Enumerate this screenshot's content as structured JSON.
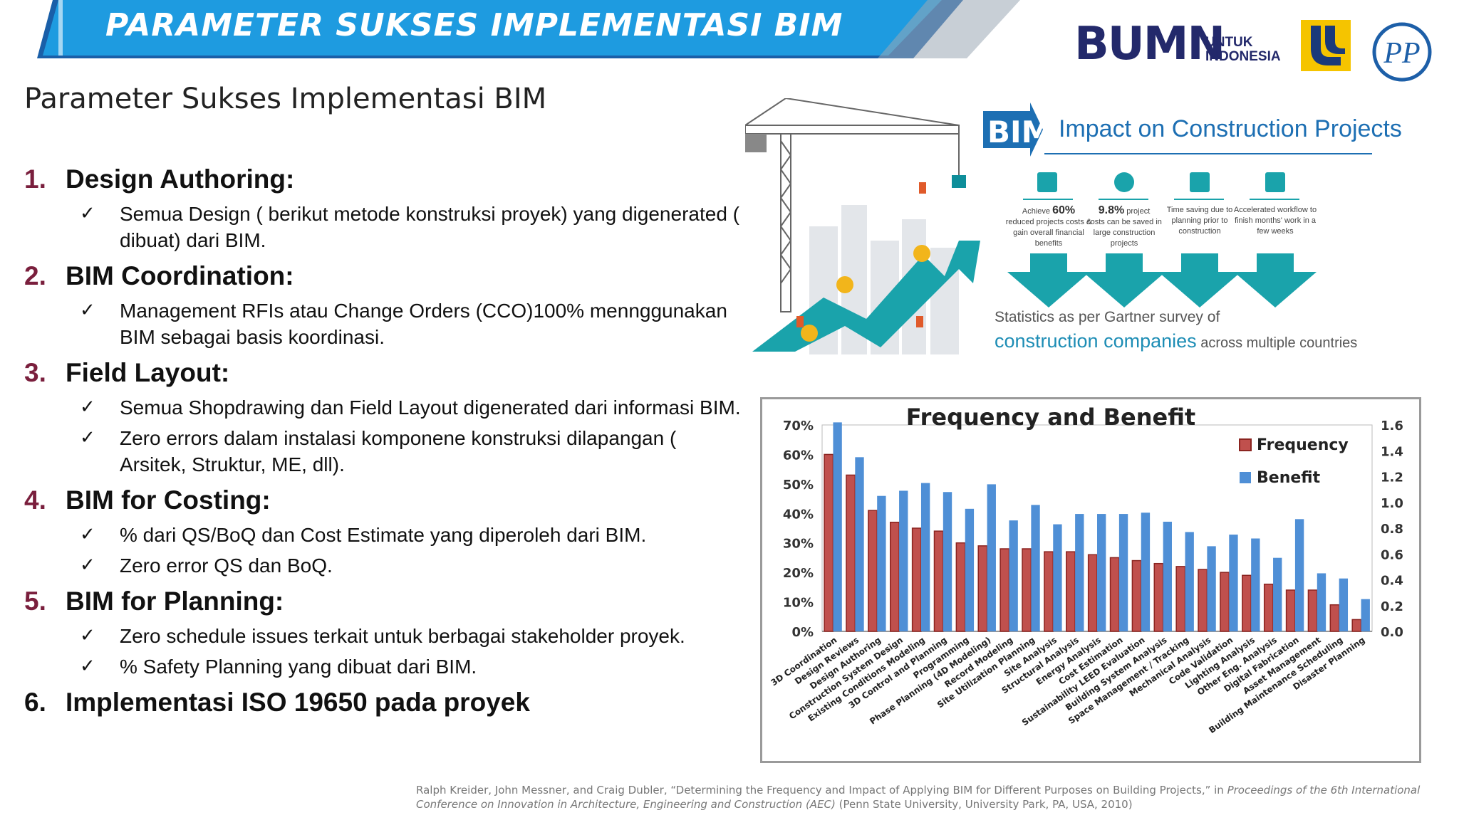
{
  "header": {
    "banner_title": "PARAMETER SUKSES IMPLEMENTASI BIM",
    "logos": {
      "bumn": "BUMN",
      "bumn_line1": "UNTUK",
      "bumn_line2": "INDONESIA",
      "pp": "PP"
    },
    "colors": {
      "banner": "#1e9be0",
      "banner_dark": "#1a5fa8",
      "navy": "#23296b"
    }
  },
  "page_title": "Parameter Sukses Implementasi BIM",
  "parameters": [
    {
      "num": "1.",
      "title": "Design Authoring:",
      "bullets": [
        "Semua Design ( berikut metode konstruksi proyek)  yang digenerated ( dibuat) dari BIM."
      ]
    },
    {
      "num": "2.",
      "title": "BIM Coordination:",
      "bullets": [
        "Management  RFIs atau Change Orders (CCO)100% mennggunakan BIM sebagai basis koordinasi."
      ]
    },
    {
      "num": "3.",
      "title": "Field Layout:",
      "bullets": [
        "Semua Shopdrawing dan Field Layout  digenerated dari informasi BIM.",
        "Zero errors dalam instalasi komponene konstruksi dilapangan ( Arsitek, Struktur, ME, dll)."
      ]
    },
    {
      "num": "4.",
      "title": "BIM for Costing:",
      "bullets": [
        "% dari QS/BoQ dan Cost Estimate yang diperoleh dari BIM.",
        "Zero error QS dan BoQ."
      ]
    },
    {
      "num": "5.",
      "title": "BIM for Planning:",
      "bullets": [
        "Zero schedule issues terkait untuk berbagai stakeholder proyek.",
        "% Safety Planning yang dibuat dari BIM."
      ]
    },
    {
      "num": "6.",
      "title": "Implementasi ISO 19650 pada proyek",
      "bullets": []
    }
  ],
  "infographic": {
    "tag": "BIM",
    "title": "Impact on Construction Projects",
    "stats": [
      {
        "highlight": "60%",
        "pre": "Achieve ",
        "text": "reduced projects costs & gain overall financial benefits"
      },
      {
        "highlight": "9.8%",
        "pre": "",
        "post": " project",
        "text": "costs can be saved in large construction projects"
      },
      {
        "highlight": "",
        "pre": "",
        "text": "Time saving due to planning prior to construction"
      },
      {
        "highlight": "",
        "pre": "",
        "text": "Accelerated workflow to finish months' work in a few weeks"
      }
    ],
    "note_line1": "Statistics as per Gartner survey of",
    "note_highlight": "construction companies",
    "note_tail": " across multiple countries"
  },
  "chart_data": {
    "type": "bar",
    "title": "Frequency and Benefit",
    "categories": [
      "3D Coordination",
      "Design Reviews",
      "Design Authoring",
      "Construction System Design",
      "Existing Conditions Modeling",
      "3D Control and Planning",
      "Programming",
      "Phase Planning (4D Modeling)",
      "Record Modeling",
      "Site Utilization Planning",
      "Site Analysis",
      "Structural Analysis",
      "Energy Analysis",
      "Cost Estimation",
      "Sustainability LEED Evaluation",
      "Building System Analysis",
      "Space Management / Tracking",
      "Mechanical Analysis",
      "Code Validation",
      "Lighting Analysis",
      "Other Eng. Analysis",
      "Digital Fabrication",
      "Asset Management",
      "Building Maintenance Scheduling",
      "Disaster Planning"
    ],
    "series": [
      {
        "name": "Frequency",
        "axis": "left",
        "color": "#c0504d",
        "values": [
          60,
          53,
          41,
          37,
          35,
          34,
          30,
          29,
          28,
          28,
          27,
          27,
          26,
          25,
          24,
          23,
          22,
          21,
          20,
          19,
          16,
          14,
          14,
          9,
          4
        ]
      },
      {
        "name": "Benefit",
        "axis": "right",
        "color": "#4f8fd6",
        "values": [
          1.62,
          1.35,
          1.05,
          1.09,
          1.15,
          1.08,
          0.95,
          1.14,
          0.86,
          0.98,
          0.83,
          0.91,
          0.91,
          0.91,
          0.92,
          0.85,
          0.77,
          0.66,
          0.75,
          0.72,
          0.57,
          0.87,
          0.45,
          0.41,
          0.25
        ]
      }
    ],
    "left_axis": {
      "ticks": [
        "0%",
        "10%",
        "20%",
        "30%",
        "40%",
        "50%",
        "60%",
        "70%"
      ],
      "ylim": [
        0,
        70
      ]
    },
    "right_axis": {
      "ticks": [
        "0.0",
        "0.2",
        "0.4",
        "0.6",
        "0.8",
        "1.0",
        "1.2",
        "1.4",
        "1.6"
      ],
      "ylim": [
        0,
        1.6
      ]
    },
    "legend": "top-right",
    "grid": false
  },
  "citation": {
    "plain1": "Ralph Kreider, John Messner, and Craig Dubler, “Determining the Frequency and Impact of Applying BIM for Different Purposes on Building Projects,” in ",
    "italic": "Proceedings of the 6th International Conference on Innovation in Architecture, Engineering and Construction (AEC)",
    "plain2": " (Penn State University, University Park, PA, USA, 2010)"
  }
}
